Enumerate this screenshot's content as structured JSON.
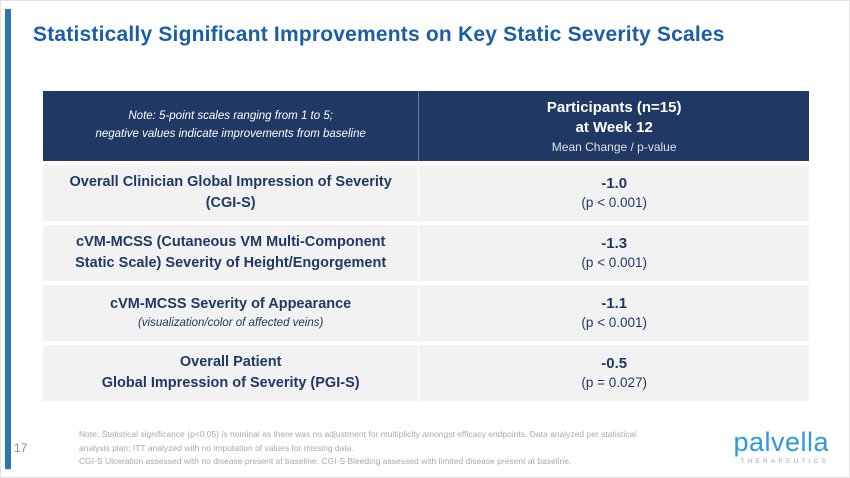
{
  "slide": {
    "title": "Statistically Significant Improvements on Key Static Severity Scales",
    "page_number": "17"
  },
  "table": {
    "header": {
      "note_line1": "Note: 5-point scales ranging from 1 to 5;",
      "note_line2": "negative values indicate improvements from baseline",
      "participants_line1": "Participants (n=15)",
      "participants_line2": "at Week 12",
      "participants_line3": "Mean Change / p-value"
    },
    "rows": [
      {
        "label_line1": "Overall Clinician Global Impression of Severity",
        "label_line2": "(CGI-S)",
        "value": "-1.0",
        "pvalue": "(p < 0.001)"
      },
      {
        "label_line1": "cVM-MCSS (Cutaneous VM Multi-Component",
        "label_line2": "Static Scale) Severity of Height/Engorgement",
        "value": "-1.3",
        "pvalue": "(p < 0.001)"
      },
      {
        "label_line1": "cVM-MCSS Severity of Appearance",
        "label_line2": "(visualization/color of affected veins)",
        "value": "-1.1",
        "pvalue": "(p < 0.001)"
      },
      {
        "label_line1": "Overall Patient",
        "label_line2": "Global Impression of Severity (PGI-S)",
        "value": "-0.5",
        "pvalue": "(p = 0.027)"
      }
    ]
  },
  "footer": {
    "note_paragraph1": "Note: Statistical significance (p<0.05) is nominal as there was no adjustment for multiplicity amongst efficacy endpoints. Data analyzed per statistical analysis plan; ITT analyzed with no imputation of values for missing data.",
    "note_paragraph2": "CGI-S Ulceration assessed with no disease present at baseline. CGI-S Bleeding assessed with limited disease present at baseline.",
    "logo_word": "palvella",
    "logo_subtitle": "THERAPEUTICS"
  },
  "colors": {
    "title_blue": "#1b5ea8",
    "header_navy": "#1f3864",
    "row_gray": "#f2f2f2",
    "body_text_navy": "#1f3864",
    "footnote_gray": "#a9a9a9",
    "accent_bar_blue": "#2e75b6",
    "logo_blue": "#2e9ad6"
  }
}
